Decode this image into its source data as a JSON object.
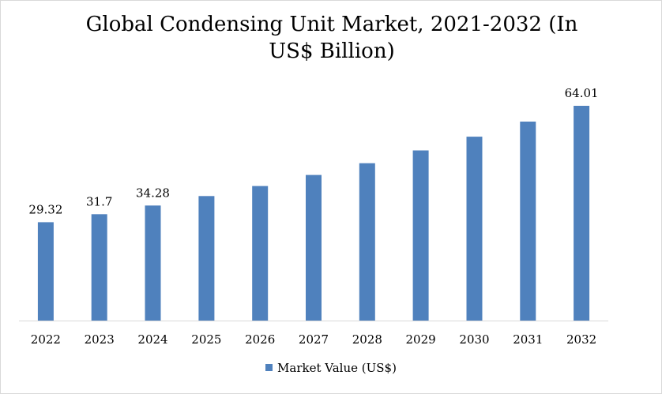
{
  "chart_data": {
    "type": "bar",
    "title": "Global Condensing Unit Market, 2021-2032 (In US$ Billion)",
    "categories": [
      "2022",
      "2023",
      "2024",
      "2025",
      "2026",
      "2027",
      "2028",
      "2029",
      "2030",
      "2031",
      "2032"
    ],
    "series": [
      {
        "name": "Market Value (US$)",
        "values": [
          29.32,
          31.7,
          34.28,
          37.1,
          40.1,
          43.4,
          46.9,
          50.7,
          54.8,
          59.3,
          64.01
        ],
        "data_labels": [
          "29.32",
          "31.7",
          "34.28",
          "",
          "",
          "",
          "",
          "",
          "",
          "",
          "64.01"
        ]
      }
    ],
    "ylim": [
      0,
      68
    ],
    "grid": false,
    "legend_position": "bottom",
    "colors": {
      "bar": "#4f81bd",
      "axis": "#d9d9d9"
    }
  }
}
